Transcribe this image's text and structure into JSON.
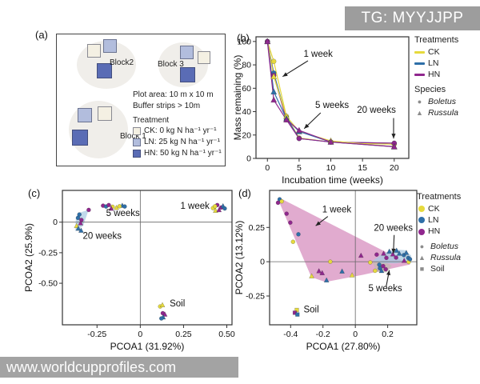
{
  "watermarks": {
    "top": "TG: MYYJJPP",
    "bottom": "www.worldcupprofiles.com"
  },
  "colors": {
    "treatments": {
      "CK": "#e6da3d",
      "LN": "#2e6fa8",
      "HN": "#90278e"
    },
    "species_gray": "#8c8c8c",
    "hull_pink": "#da96c3",
    "hull_blue": "#a7c9e3",
    "hull_gray": "#c2bbb1",
    "panel_a_swatches": {
      "CK": "#f4f0e3",
      "LN": "#b2bddd",
      "HN": "#5a6cb5"
    }
  },
  "panel_a": {
    "label": "(a)",
    "blocks": [
      {
        "name": "Block2"
      },
      {
        "name": "Block 3"
      },
      {
        "name": "Block 1"
      }
    ],
    "plot_area_text": "Plot area: 10 m x 10 m",
    "buffer_text": "Buffer strips > 10m",
    "treatment_title": "Treatment",
    "treatments": [
      {
        "code": "CK",
        "label": "CK: 0 kg N ha⁻¹ yr⁻¹"
      },
      {
        "code": "LN",
        "label": "LN: 25 kg N ha⁻¹ yr⁻¹"
      },
      {
        "code": "HN",
        "label": "HN: 50 kg N ha⁻¹ yr⁻¹"
      }
    ]
  },
  "legend_b": {
    "title": "Treatments",
    "items": [
      {
        "label": "CK"
      },
      {
        "label": "LN"
      },
      {
        "label": "HN"
      }
    ],
    "species_title": "Species",
    "species": [
      {
        "label": "Boletus",
        "glyph": "●",
        "style": "italic"
      },
      {
        "label": "Russula",
        "glyph": "▲",
        "style": "italic"
      }
    ]
  },
  "legend_d": {
    "title": "Treatments",
    "items": [
      {
        "label": "CK"
      },
      {
        "label": "LN"
      },
      {
        "label": "HN"
      }
    ],
    "species": [
      {
        "label": "Boletus",
        "glyph": "●",
        "style": "italic"
      },
      {
        "label": "Russula",
        "glyph": "▲",
        "style": "italic"
      },
      {
        "label": "Soil",
        "glyph": "■",
        "style": "normal"
      }
    ]
  },
  "chart_data": [
    {
      "id": "panel-b",
      "type": "line",
      "panel_label": "(b)",
      "xlabel": "Incubation time (weeks)",
      "ylabel": "Mass remaining (%)",
      "xdomain": [
        -1.8,
        22.3
      ],
      "ydomain": [
        0,
        104
      ],
      "xticks": [
        0,
        5,
        10,
        15,
        20
      ],
      "xtick_labels": [
        "0",
        "5",
        "10",
        "15",
        "20"
      ],
      "yticks": [
        0,
        20,
        40,
        60,
        80,
        100
      ],
      "ytick_labels": [
        "0",
        "20",
        "40",
        "60",
        "80",
        "100"
      ],
      "m": [
        29,
        10,
        12,
        40
      ],
      "msize": 3,
      "x": [
        0,
        1,
        3,
        5,
        10,
        20
      ],
      "series": [
        {
          "name": "CK-Boletus",
          "treatment": "CK",
          "species": "Boletus",
          "shape": "circle",
          "values": [
            100,
            83,
            36,
            17.5,
            14,
            12
          ]
        },
        {
          "name": "LN-Boletus",
          "treatment": "LN",
          "species": "Boletus",
          "shape": "circle",
          "values": [
            100,
            73,
            35,
            17,
            14,
            13
          ]
        },
        {
          "name": "HN-Boletus",
          "treatment": "HN",
          "species": "Boletus",
          "shape": "circle",
          "values": [
            100,
            71,
            33,
            17,
            14,
            13
          ]
        },
        {
          "name": "CK-Russula",
          "treatment": "CK",
          "species": "Russula",
          "shape": "triangle",
          "values": [
            100,
            70,
            36,
            23,
            15,
            10
          ]
        },
        {
          "name": "LN-Russula",
          "treatment": "LN",
          "species": "Russula",
          "shape": "triangle",
          "values": [
            100,
            57,
            34,
            23,
            14,
            10
          ]
        },
        {
          "name": "HN-Russula",
          "treatment": "HN",
          "species": "Russula",
          "shape": "triangle",
          "values": [
            100,
            50,
            33,
            24,
            14,
            10
          ]
        }
      ],
      "annotations": [
        {
          "text": "1 week",
          "tx": 8.0,
          "ty": 87,
          "ax1": 6.4,
          "ay1": 83.5,
          "ax2": 2.4,
          "ay2": 70
        },
        {
          "text": "5 weeks",
          "tx": 10.2,
          "ty": 43,
          "ax1": 8.4,
          "ay1": 39,
          "ax2": 5.8,
          "ay2": 25.5
        },
        {
          "text": "20 weeks",
          "tx": 17.2,
          "ty": 39,
          "ax1": 19.9,
          "ay1": 34.5,
          "ax2": 19.9,
          "ay2": 17
        }
      ]
    },
    {
      "id": "panel-c",
      "type": "scatter",
      "panel_label": "(c)",
      "xlabel": "PCOA1 (31.92%)",
      "ylabel": "PCOA2 (25.9%)",
      "xdomain": [
        -0.45,
        0.53
      ],
      "ydomain": [
        -0.84,
        0.26
      ],
      "xticks": [
        -0.25,
        0,
        0.25,
        0.5
      ],
      "xtick_labels": [
        "-0.25",
        "0",
        "0.25",
        "0.50"
      ],
      "yticks": [
        0,
        -0.25,
        -0.5
      ],
      "ytick_labels": [
        "0",
        "-0.25",
        "-0.50"
      ],
      "m": [
        48,
        8,
        12,
        40
      ],
      "msize": 2.5,
      "zero_lines": true,
      "polygons": [
        {
          "name": "hull-20-weeks",
          "fill": "#a7c9e3",
          "opacity": 0.7,
          "pts": [
            [
              -0.375,
              -0.075
            ],
            [
              -0.372,
              0.04
            ],
            [
              -0.355,
              0.075
            ],
            [
              -0.298,
              0.102
            ],
            [
              -0.33,
              -0.03
            ]
          ]
        }
      ],
      "points": [
        {
          "t": "CK",
          "s": "circle",
          "x": 0.42,
          "y": 0.115
        },
        {
          "t": "CK",
          "s": "triangle",
          "x": 0.435,
          "y": 0.095
        },
        {
          "t": "HN",
          "s": "circle",
          "x": 0.445,
          "y": 0.14
        },
        {
          "t": "HN",
          "s": "circle",
          "x": 0.468,
          "y": 0.12
        },
        {
          "t": "LN",
          "s": "triangle",
          "x": 0.478,
          "y": 0.132
        },
        {
          "t": "HN",
          "s": "triangle",
          "x": 0.455,
          "y": 0.1
        },
        {
          "t": "LN",
          "s": "circle",
          "x": 0.488,
          "y": 0.112
        },
        {
          "t": "CK",
          "s": "circle",
          "x": 0.432,
          "y": 0.13
        },
        {
          "t": "HN",
          "s": "circle",
          "x": -0.215,
          "y": 0.135
        },
        {
          "t": "LN",
          "s": "circle",
          "x": -0.198,
          "y": 0.128
        },
        {
          "t": "HN",
          "s": "circle",
          "x": -0.182,
          "y": 0.14
        },
        {
          "t": "CK",
          "s": "circle",
          "x": -0.16,
          "y": 0.126
        },
        {
          "t": "CK",
          "s": "triangle",
          "x": -0.138,
          "y": 0.118
        },
        {
          "t": "HN",
          "s": "triangle",
          "x": -0.168,
          "y": 0.112
        },
        {
          "t": "LN",
          "s": "triangle",
          "x": -0.104,
          "y": 0.136
        },
        {
          "t": "CK",
          "s": "circle",
          "x": -0.12,
          "y": 0.13
        },
        {
          "t": "LN",
          "s": "circle",
          "x": -0.09,
          "y": 0.128
        },
        {
          "t": "HN",
          "s": "circle",
          "x": -0.298,
          "y": 0.1
        },
        {
          "t": "LN",
          "s": "circle",
          "x": -0.352,
          "y": 0.063
        },
        {
          "t": "LN",
          "s": "circle",
          "x": -0.36,
          "y": 0.035
        },
        {
          "t": "HN",
          "s": "circle",
          "x": -0.34,
          "y": 0.018
        },
        {
          "t": "HN",
          "s": "triangle",
          "x": -0.345,
          "y": -0.008
        },
        {
          "t": "CK",
          "s": "triangle",
          "x": -0.368,
          "y": -0.03
        },
        {
          "t": "LN",
          "s": "triangle",
          "x": -0.358,
          "y": -0.052
        },
        {
          "t": "LN",
          "s": "triangle",
          "x": -0.342,
          "y": -0.068
        },
        {
          "t": "CK",
          "s": "circle",
          "x": 0.115,
          "y": -0.69
        },
        {
          "t": "CK",
          "s": "triangle",
          "x": 0.128,
          "y": -0.678
        },
        {
          "t": "HN",
          "s": "circle",
          "x": 0.13,
          "y": -0.745
        },
        {
          "t": "HN",
          "s": "triangle",
          "x": 0.142,
          "y": -0.755
        },
        {
          "t": "LN",
          "s": "triangle",
          "x": 0.132,
          "y": -0.778
        },
        {
          "t": "LN",
          "s": "circle",
          "x": 0.122,
          "y": -0.788
        }
      ],
      "labels": [
        {
          "text": "5 weeks",
          "x": -0.1,
          "y": 0.05,
          "anchor": "middle"
        },
        {
          "text": "1 week",
          "x": 0.4,
          "y": 0.11,
          "anchor": "end"
        },
        {
          "text": "20 weeks",
          "x": -0.22,
          "y": -0.135,
          "anchor": "middle"
        },
        {
          "text": "Soil",
          "x": 0.17,
          "y": -0.69,
          "anchor": "start"
        }
      ]
    },
    {
      "id": "panel-d",
      "type": "scatter",
      "panel_label": "(d)",
      "xlabel": "PCOA1 (27.80%)",
      "ylabel": "PCOA2 (13.12%)",
      "xdomain": [
        -0.53,
        0.38
      ],
      "ydomain": [
        -0.46,
        0.52
      ],
      "xticks": [
        -0.4,
        -0.2,
        0,
        0.2
      ],
      "xtick_labels": [
        "-0.4",
        "-0.2",
        "0",
        "0.2"
      ],
      "yticks": [
        0.25,
        0,
        -0.25
      ],
      "ytick_labels": [
        "0.25",
        "0",
        "-0.25"
      ],
      "m": [
        44,
        8,
        8,
        40
      ],
      "msize": 2.5,
      "zero_lines": true,
      "polygons": [
        {
          "name": "hull-1-week",
          "fill": "#da96c3",
          "opacity": 0.8,
          "pts": [
            [
              -0.478,
              0.455
            ],
            [
              -0.462,
              0.462
            ],
            [
              0.34,
              -0.02
            ],
            [
              0.05,
              -0.095
            ],
            [
              -0.185,
              -0.148
            ],
            [
              -0.272,
              -0.112
            ]
          ]
        },
        {
          "name": "hull-5-weeks",
          "fill": "#c2bbb1",
          "opacity": 0.75,
          "pts": [
            [
              0.105,
              -0.005
            ],
            [
              0.175,
              0.002
            ],
            [
              0.225,
              -0.028
            ],
            [
              0.195,
              -0.078
            ],
            [
              0.135,
              -0.075
            ]
          ]
        },
        {
          "name": "hull-20-weeks",
          "fill": "#a7c9e3",
          "opacity": 0.75,
          "pts": [
            [
              0.105,
              0.005
            ],
            [
              0.165,
              0.055
            ],
            [
              0.235,
              0.088
            ],
            [
              0.305,
              0.085
            ],
            [
              0.345,
              0.045
            ],
            [
              0.345,
              0.005
            ],
            [
              0.25,
              -0.012
            ],
            [
              0.16,
              -0.01
            ]
          ]
        }
      ],
      "points": [
        {
          "t": "LN",
          "s": "circle",
          "x": -0.468,
          "y": 0.455
        },
        {
          "t": "HN",
          "s": "circle",
          "x": -0.478,
          "y": 0.43
        },
        {
          "t": "CK",
          "s": "circle",
          "x": -0.455,
          "y": 0.44
        },
        {
          "t": "HN",
          "s": "circle",
          "x": -0.425,
          "y": 0.35
        },
        {
          "t": "HN",
          "s": "circle",
          "x": -0.402,
          "y": 0.285
        },
        {
          "t": "LN",
          "s": "circle",
          "x": -0.352,
          "y": 0.2
        },
        {
          "t": "CK",
          "s": "circle",
          "x": -0.385,
          "y": 0.145
        },
        {
          "t": "CK",
          "s": "triangle",
          "x": -0.27,
          "y": -0.105
        },
        {
          "t": "HN",
          "s": "triangle",
          "x": -0.225,
          "y": -0.068
        },
        {
          "t": "HN",
          "s": "triangle",
          "x": -0.205,
          "y": -0.082
        },
        {
          "t": "LN",
          "s": "triangle",
          "x": -0.178,
          "y": -0.135
        },
        {
          "t": "CK",
          "s": "circle",
          "x": -0.155,
          "y": 0.0
        },
        {
          "t": "LN",
          "s": "triangle",
          "x": -0.082,
          "y": -0.07
        },
        {
          "t": "CK",
          "s": "triangle",
          "x": -0.02,
          "y": -0.098
        },
        {
          "t": "HN",
          "s": "triangle",
          "x": 0.035,
          "y": 0.045
        },
        {
          "t": "CK",
          "s": "circle",
          "x": 0.092,
          "y": -0.005
        },
        {
          "t": "HN",
          "s": "circle",
          "x": 0.132,
          "y": 0.052
        },
        {
          "t": "HN",
          "s": "triangle",
          "x": 0.175,
          "y": 0.06
        },
        {
          "t": "LN",
          "s": "triangle",
          "x": 0.21,
          "y": 0.075
        },
        {
          "t": "HN",
          "s": "circle",
          "x": 0.192,
          "y": 0.028
        },
        {
          "t": "HN",
          "s": "triangle",
          "x": 0.232,
          "y": 0.055
        },
        {
          "t": "LN",
          "s": "triangle",
          "x": 0.255,
          "y": 0.082
        },
        {
          "t": "LN",
          "s": "triangle",
          "x": 0.272,
          "y": 0.06
        },
        {
          "t": "HN",
          "s": "circle",
          "x": 0.252,
          "y": 0.03
        },
        {
          "t": "LN",
          "s": "circle",
          "x": 0.3,
          "y": 0.048
        },
        {
          "t": "LN",
          "s": "triangle",
          "x": 0.315,
          "y": 0.066
        },
        {
          "t": "LN",
          "s": "circle",
          "x": 0.327,
          "y": 0.028
        },
        {
          "t": "HN",
          "s": "triangle",
          "x": 0.302,
          "y": 0.008
        },
        {
          "t": "CK",
          "s": "circle",
          "x": 0.33,
          "y": -0.002
        },
        {
          "t": "LN",
          "s": "circle",
          "x": 0.338,
          "y": 0.018
        },
        {
          "t": "LN",
          "s": "circle",
          "x": 0.148,
          "y": -0.022
        },
        {
          "t": "LN",
          "s": "circle",
          "x": 0.152,
          "y": -0.048
        },
        {
          "t": "HN",
          "s": "circle",
          "x": 0.172,
          "y": -0.032
        },
        {
          "t": "LN",
          "s": "triangle",
          "x": 0.162,
          "y": -0.066
        },
        {
          "t": "HN",
          "s": "circle",
          "x": 0.188,
          "y": -0.055
        },
        {
          "t": "CK",
          "s": "circle",
          "x": 0.122,
          "y": -0.066
        },
        {
          "t": "CK",
          "s": "square",
          "x": -0.362,
          "y": -0.352
        },
        {
          "t": "HN",
          "s": "square",
          "x": -0.374,
          "y": -0.372
        },
        {
          "t": "LN",
          "s": "square",
          "x": -0.358,
          "y": -0.385
        }
      ],
      "labels": [
        {
          "text": "Soil",
          "x": -0.32,
          "y": -0.37,
          "anchor": "start"
        }
      ],
      "annotations": [
        {
          "text": "1 week",
          "tx": -0.115,
          "ty": 0.36,
          "ax1": -0.17,
          "ay1": 0.33,
          "ax2": -0.245,
          "ay2": 0.262
        },
        {
          "text": "20 weeks",
          "tx": 0.235,
          "ty": 0.225,
          "ax1": 0.24,
          "ay1": 0.195,
          "ax2": 0.235,
          "ay2": 0.06
        },
        {
          "text": "5 weeks",
          "tx": 0.185,
          "ty": -0.215,
          "ax1": 0.19,
          "ay1": -0.185,
          "ax2": 0.21,
          "ay2": -0.062
        }
      ]
    }
  ]
}
